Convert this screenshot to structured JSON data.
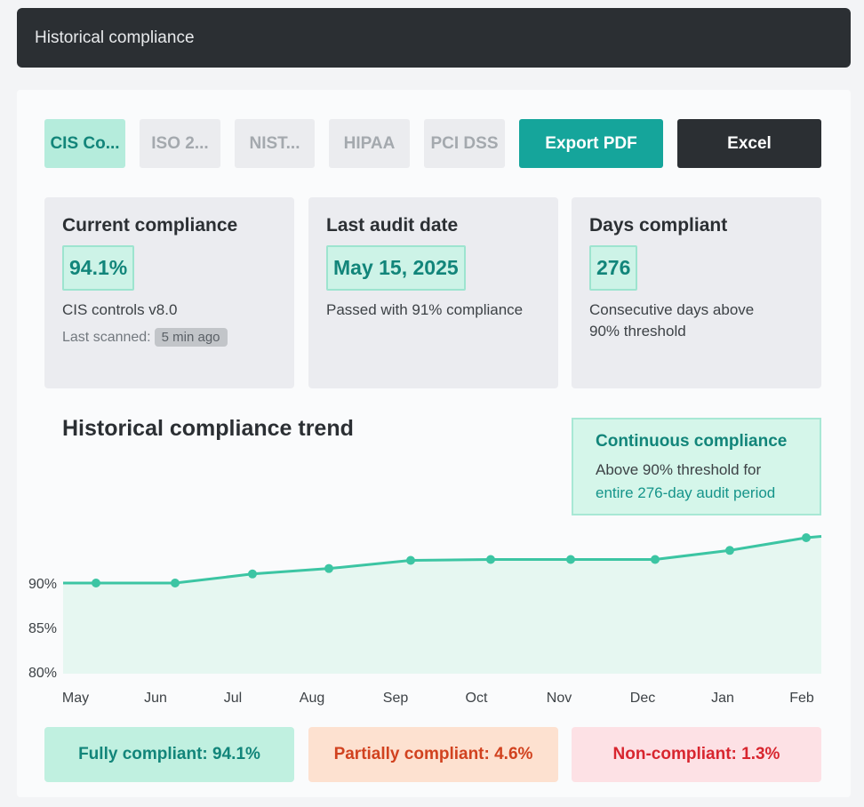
{
  "window": {
    "title": "Historical compliance"
  },
  "tabs": [
    {
      "label": "CIS Co...",
      "active": true
    },
    {
      "label": "ISO 2...",
      "active": false
    },
    {
      "label": "NIST...",
      "active": false
    },
    {
      "label": "HIPAA",
      "active": false
    },
    {
      "label": "PCI DSS",
      "active": false
    }
  ],
  "actions": {
    "export_pdf": "Export PDF",
    "excel": "Excel"
  },
  "cards": {
    "current": {
      "title": "Current compliance",
      "value": "94.1%",
      "desc": "CIS controls v8.0",
      "scan_label": "Last scanned:",
      "scan_badge": "5 min ago"
    },
    "audit": {
      "title": "Last audit date",
      "value": "May 15, 2025",
      "desc": "Passed with 91% compliance"
    },
    "days": {
      "title": "Days compliant",
      "value": "276",
      "desc_line1": "Consecutive days above",
      "desc_line2": "90% threshold"
    }
  },
  "trend": {
    "title": "Historical compliance trend",
    "callout": {
      "title": "Continuous compliance",
      "line1": "Above 90% threshold for",
      "line2": "entire 276-day audit period"
    }
  },
  "chart_data": {
    "type": "area",
    "title": "Historical compliance trend",
    "categories": [
      "May",
      "Jun",
      "Jul",
      "Aug",
      "Sep",
      "Oct",
      "Nov",
      "Dec",
      "Jan",
      "Feb"
    ],
    "values": [
      90.0,
      90.0,
      91.0,
      91.6,
      92.5,
      92.6,
      92.6,
      92.6,
      93.6,
      95.0
    ],
    "yticks": [
      "90%",
      "85%",
      "80%"
    ],
    "ylim": [
      80,
      95
    ],
    "grid": false,
    "colors": {
      "line": "#3cc5a3",
      "fill": "#e6f7f1"
    }
  },
  "status": {
    "full": "Fully compliant: 94.1%",
    "partial": "Partially compliant: 4.6%",
    "non": "Non-compliant: 1.3%"
  }
}
